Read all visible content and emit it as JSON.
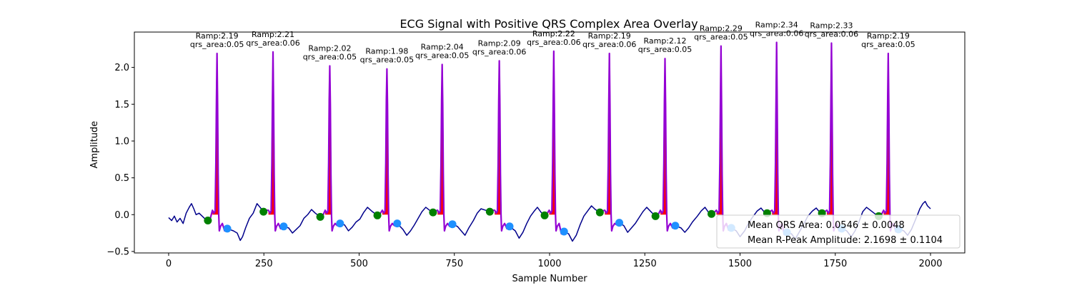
{
  "chart_data": {
    "type": "line",
    "title": "ECG Signal with Positive QRS Complex Area Overlay",
    "xlabel": "Sample Number",
    "ylabel": "Amplitude",
    "xlim": [
      -90,
      2090
    ],
    "ylim": [
      -0.52,
      2.48
    ],
    "xticks": [
      0,
      250,
      500,
      750,
      1000,
      1250,
      1500,
      1750,
      2000
    ],
    "yticks": [
      -0.5,
      0.0,
      0.5,
      1.0,
      1.5,
      2.0
    ],
    "ytick_labels": [
      "−0.5",
      "0.0",
      "0.5",
      "1.0",
      "1.5",
      "2.0"
    ],
    "grid": false,
    "legend_position": "lower-right",
    "legend": [
      "Mean QRS Area: 0.0546 ± 0.0048",
      "Mean R-Peak Amplitude: 2.1698 ± 0.1104"
    ],
    "colors": {
      "signal": "#00008b",
      "qrs_segment": "#9400d3",
      "qrs_area_fill": "#ff0000",
      "onset_marker": "#008000",
      "offset_marker": "#1e90ff"
    },
    "beats": [
      {
        "r_sample": 127,
        "r_amp": 2.19,
        "qrs_area": "0.05",
        "onset_x": 103,
        "onset_y": -0.08,
        "offset_x": 154,
        "offset_y": -0.19
      },
      {
        "r_sample": 274,
        "r_amp": 2.21,
        "qrs_area": "0.06",
        "onset_x": 249,
        "onset_y": 0.04,
        "offset_x": 302,
        "offset_y": -0.16
      },
      {
        "r_sample": 423,
        "r_amp": 2.02,
        "qrs_area": "0.05",
        "onset_x": 398,
        "onset_y": -0.03,
        "offset_x": 450,
        "offset_y": -0.12
      },
      {
        "r_sample": 573,
        "r_amp": 1.98,
        "qrs_area": "0.05",
        "onset_x": 548,
        "onset_y": -0.01,
        "offset_x": 600,
        "offset_y": -0.12
      },
      {
        "r_sample": 718,
        "r_amp": 2.04,
        "qrs_area": "0.05",
        "onset_x": 694,
        "onset_y": 0.03,
        "offset_x": 745,
        "offset_y": -0.13
      },
      {
        "r_sample": 868,
        "r_amp": 2.09,
        "qrs_area": "0.06",
        "onset_x": 843,
        "onset_y": 0.04,
        "offset_x": 895,
        "offset_y": -0.16
      },
      {
        "r_sample": 1011,
        "r_amp": 2.22,
        "qrs_area": "0.06",
        "onset_x": 987,
        "onset_y": -0.01,
        "offset_x": 1038,
        "offset_y": -0.23
      },
      {
        "r_sample": 1157,
        "r_amp": 2.19,
        "qrs_area": "0.06",
        "onset_x": 1132,
        "onset_y": 0.03,
        "offset_x": 1183,
        "offset_y": -0.11
      },
      {
        "r_sample": 1303,
        "r_amp": 2.12,
        "qrs_area": "0.05",
        "onset_x": 1278,
        "onset_y": -0.02,
        "offset_x": 1330,
        "offset_y": -0.15
      },
      {
        "r_sample": 1450,
        "r_amp": 2.29,
        "qrs_area": "0.05",
        "onset_x": 1425,
        "onset_y": 0.01,
        "offset_x": 1477,
        "offset_y": -0.18
      },
      {
        "r_sample": 1596,
        "r_amp": 2.34,
        "qrs_area": "0.06",
        "onset_x": 1571,
        "onset_y": 0.02,
        "offset_x": 1623,
        "offset_y": -0.24
      },
      {
        "r_sample": 1740,
        "r_amp": 2.33,
        "qrs_area": "0.06",
        "onset_x": 1715,
        "onset_y": 0.02,
        "offset_x": 1767,
        "offset_y": -0.19
      },
      {
        "r_sample": 1889,
        "r_amp": 2.19,
        "qrs_area": "0.05",
        "onset_x": 1864,
        "onset_y": -0.02,
        "offset_x": 1916,
        "offset_y": -0.2
      }
    ],
    "baseline_waveform": [
      [
        0,
        -0.04
      ],
      [
        8,
        -0.08
      ],
      [
        15,
        -0.02
      ],
      [
        22,
        -0.1
      ],
      [
        30,
        -0.05
      ],
      [
        38,
        -0.12
      ],
      [
        46,
        0.02
      ],
      [
        54,
        0.1
      ],
      [
        60,
        0.15
      ],
      [
        66,
        0.08
      ],
      [
        72,
        0.0
      ],
      [
        80,
        0.02
      ],
      [
        88,
        -0.02
      ],
      [
        96,
        -0.06
      ],
      [
        103,
        -0.08
      ],
      [
        154,
        -0.19
      ],
      [
        170,
        -0.22
      ],
      [
        180,
        -0.25
      ],
      [
        188,
        -0.35
      ],
      [
        194,
        -0.3
      ],
      [
        202,
        -0.18
      ],
      [
        212,
        -0.05
      ],
      [
        222,
        0.02
      ],
      [
        232,
        0.15
      ],
      [
        240,
        0.1
      ],
      [
        249,
        0.04
      ],
      [
        302,
        -0.16
      ],
      [
        315,
        -0.18
      ],
      [
        325,
        -0.25
      ],
      [
        335,
        -0.2
      ],
      [
        345,
        -0.15
      ],
      [
        355,
        -0.05
      ],
      [
        365,
        0.0
      ],
      [
        375,
        0.07
      ],
      [
        385,
        0.02
      ],
      [
        398,
        -0.03
      ],
      [
        450,
        -0.12
      ],
      [
        462,
        -0.14
      ],
      [
        472,
        -0.22
      ],
      [
        482,
        -0.17
      ],
      [
        492,
        -0.1
      ],
      [
        502,
        -0.06
      ],
      [
        512,
        0.03
      ],
      [
        522,
        0.1
      ],
      [
        535,
        0.04
      ],
      [
        548,
        -0.01
      ],
      [
        600,
        -0.12
      ],
      [
        615,
        -0.2
      ],
      [
        625,
        -0.28
      ],
      [
        635,
        -0.22
      ],
      [
        645,
        -0.14
      ],
      [
        655,
        -0.05
      ],
      [
        665,
        0.04
      ],
      [
        675,
        0.1
      ],
      [
        685,
        0.06
      ],
      [
        694,
        0.03
      ],
      [
        745,
        -0.13
      ],
      [
        758,
        -0.16
      ],
      [
        768,
        -0.22
      ],
      [
        778,
        -0.28
      ],
      [
        788,
        -0.18
      ],
      [
        800,
        -0.08
      ],
      [
        810,
        0.02
      ],
      [
        820,
        0.08
      ],
      [
        832,
        0.06
      ],
      [
        843,
        0.04
      ],
      [
        895,
        -0.16
      ],
      [
        910,
        -0.22
      ],
      [
        920,
        -0.32
      ],
      [
        930,
        -0.24
      ],
      [
        940,
        -0.12
      ],
      [
        950,
        -0.02
      ],
      [
        960,
        0.05
      ],
      [
        968,
        0.1
      ],
      [
        978,
        0.03
      ],
      [
        987,
        -0.01
      ],
      [
        1038,
        -0.23
      ],
      [
        1050,
        -0.26
      ],
      [
        1060,
        -0.36
      ],
      [
        1070,
        -0.28
      ],
      [
        1080,
        -0.14
      ],
      [
        1090,
        -0.02
      ],
      [
        1100,
        0.05
      ],
      [
        1110,
        0.12
      ],
      [
        1120,
        0.07
      ],
      [
        1132,
        0.03
      ],
      [
        1183,
        -0.11
      ],
      [
        1195,
        -0.15
      ],
      [
        1205,
        -0.24
      ],
      [
        1215,
        -0.18
      ],
      [
        1225,
        -0.12
      ],
      [
        1235,
        -0.04
      ],
      [
        1245,
        0.04
      ],
      [
        1255,
        0.1
      ],
      [
        1268,
        0.03
      ],
      [
        1278,
        -0.02
      ],
      [
        1330,
        -0.15
      ],
      [
        1345,
        -0.18
      ],
      [
        1355,
        -0.24
      ],
      [
        1365,
        -0.18
      ],
      [
        1375,
        -0.1
      ],
      [
        1388,
        -0.02
      ],
      [
        1398,
        0.05
      ],
      [
        1408,
        0.1
      ],
      [
        1416,
        0.04
      ],
      [
        1425,
        0.01
      ],
      [
        1477,
        -0.18
      ],
      [
        1490,
        -0.22
      ],
      [
        1500,
        -0.3
      ],
      [
        1512,
        -0.22
      ],
      [
        1522,
        -0.12
      ],
      [
        1532,
        -0.04
      ],
      [
        1545,
        0.05
      ],
      [
        1555,
        0.09
      ],
      [
        1563,
        0.04
      ],
      [
        1571,
        0.02
      ],
      [
        1623,
        -0.24
      ],
      [
        1635,
        -0.26
      ],
      [
        1645,
        -0.33
      ],
      [
        1655,
        -0.24
      ],
      [
        1668,
        -0.12
      ],
      [
        1678,
        -0.02
      ],
      [
        1690,
        0.05
      ],
      [
        1700,
        0.09
      ],
      [
        1708,
        0.04
      ],
      [
        1715,
        0.02
      ],
      [
        1767,
        -0.19
      ],
      [
        1780,
        -0.22
      ],
      [
        1792,
        -0.3
      ],
      [
        1802,
        -0.22
      ],
      [
        1812,
        -0.1
      ],
      [
        1822,
        0.04
      ],
      [
        1832,
        0.1
      ],
      [
        1842,
        0.06
      ],
      [
        1852,
        0.02
      ],
      [
        1864,
        -0.02
      ],
      [
        1916,
        -0.2
      ],
      [
        1930,
        -0.22
      ],
      [
        1940,
        -0.28
      ],
      [
        1950,
        -0.2
      ],
      [
        1958,
        -0.1
      ],
      [
        1966,
        0.0
      ],
      [
        1972,
        0.08
      ],
      [
        1980,
        0.15
      ],
      [
        1986,
        0.18
      ],
      [
        1992,
        0.12
      ],
      [
        2000,
        0.08
      ]
    ]
  }
}
